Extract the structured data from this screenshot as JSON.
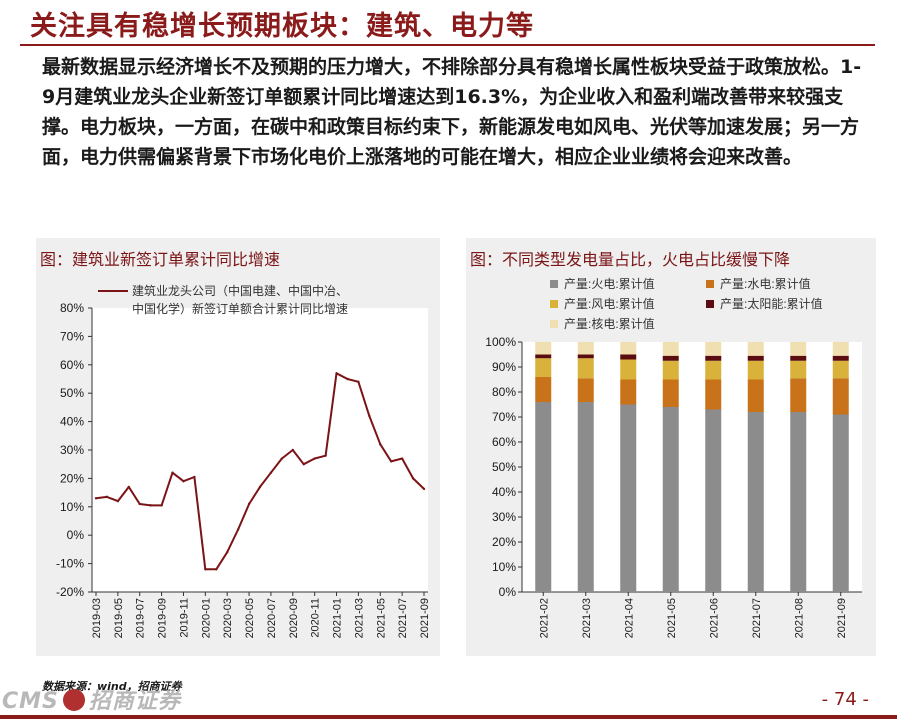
{
  "header": {
    "title": "关注具有稳增长预期板块：建筑、电力等"
  },
  "body_text": "最新数据显示经济增长不及预期的压力增大，不排除部分具有稳增长属性板块受益于政策放松。1-9月建筑业龙头企业新签订单额累计同比增速达到16.3%，为企业收入和盈利端改善带来较强支撑。电力板块，一方面，在碳中和政策目标约束下，新能源发电如风电、光伏等加速发展；另一方面，电力供需偏紧背景下市场化电价上涨落地的可能在增大，相应企业业绩将会迎来改善。",
  "left_panel": {
    "title": "图：建筑业新签订单累计同比增速"
  },
  "right_panel": {
    "title": "图：不同类型发电量占比，火电占比缓慢下降"
  },
  "footer": {
    "source": "数据来源：wind，招商证券",
    "logo_cms": "CMS",
    "logo_cn": "招商证券",
    "page": "- 74 -"
  },
  "colors": {
    "brand": "#8b1a1a",
    "line": "#7b1416",
    "thermal": "#8c8c8c",
    "hydro": "#c8721a",
    "wind": "#d8b23a",
    "solar": "#5a0c10",
    "nuclear": "#f0dfb0"
  },
  "chart_data": [
    {
      "type": "line",
      "title": "",
      "legend": [
        "建筑业龙头公司（中国电建、中国中冶、中国化学）新签订单额合计累计同比增速"
      ],
      "legend_placement": "top",
      "x": [
        "2019-03",
        "2019-04",
        "2019-05",
        "2019-06",
        "2019-07",
        "2019-08",
        "2019-09",
        "2019-10",
        "2019-11",
        "2019-12",
        "2020-01",
        "2020-02",
        "2020-03",
        "2020-04",
        "2020-05",
        "2020-06",
        "2020-07",
        "2020-08",
        "2020-09",
        "2020-10",
        "2020-11",
        "2020-12",
        "2021-01",
        "2021-02",
        "2021-03",
        "2021-04",
        "2021-05",
        "2021-06",
        "2021-07",
        "2021-08",
        "2021-09"
      ],
      "x_tick_labels": [
        "2019-03",
        "2019-05",
        "2019-07",
        "2019-09",
        "2019-11",
        "2020-01",
        "2020-03",
        "2020-05",
        "2020-07",
        "2020-09",
        "2020-11",
        "2021-01",
        "2021-03",
        "2021-05",
        "2021-07",
        "2021-09"
      ],
      "series": [
        {
          "name": "建筑业龙头公司（中国电建、中国中冶、中国化学）新签订单额合计累计同比增速",
          "values": [
            13,
            13.5,
            12,
            17,
            11,
            10.5,
            10.5,
            22,
            19,
            20.5,
            -12,
            -12,
            -6,
            2,
            11,
            17,
            22,
            27,
            30,
            25,
            27,
            28,
            57,
            55,
            54,
            42,
            32,
            26,
            27,
            20,
            16.3
          ]
        }
      ],
      "ylim": [
        -20,
        80
      ],
      "yticks": [
        "-20%",
        "-10%",
        "0%",
        "10%",
        "20%",
        "30%",
        "40%",
        "50%",
        "60%",
        "70%",
        "80%"
      ],
      "grid": false
    },
    {
      "type": "bar",
      "stacked": true,
      "title": "",
      "categories": [
        "2021-02",
        "2021-03",
        "2021-04",
        "2021-05",
        "2021-06",
        "2021-07",
        "2021-08",
        "2021-09"
      ],
      "series": [
        {
          "name": "产量:火电:累计值",
          "values": [
            76,
            76,
            75,
            74,
            73,
            72,
            72,
            71
          ]
        },
        {
          "name": "产量:水电:累计值",
          "values": [
            10,
            9.5,
            10,
            11,
            12,
            13,
            13.5,
            14.5
          ]
        },
        {
          "name": "产量:风电:累计值",
          "values": [
            7.5,
            8,
            8,
            7.5,
            7.5,
            7.5,
            7,
            7
          ]
        },
        {
          "name": "产量:太阳能:累计值",
          "values": [
            1.5,
            1.5,
            2,
            2,
            2,
            2,
            2,
            2
          ]
        },
        {
          "name": "产量:核电:累计值",
          "values": [
            5,
            5,
            5,
            5.5,
            5.5,
            5.5,
            5.5,
            5.5
          ]
        }
      ],
      "ylim": [
        0,
        100
      ],
      "yticks": [
        "0%",
        "10%",
        "20%",
        "30%",
        "40%",
        "50%",
        "60%",
        "70%",
        "80%",
        "90%",
        "100%"
      ],
      "legend_placement": "top",
      "grid": false
    }
  ]
}
